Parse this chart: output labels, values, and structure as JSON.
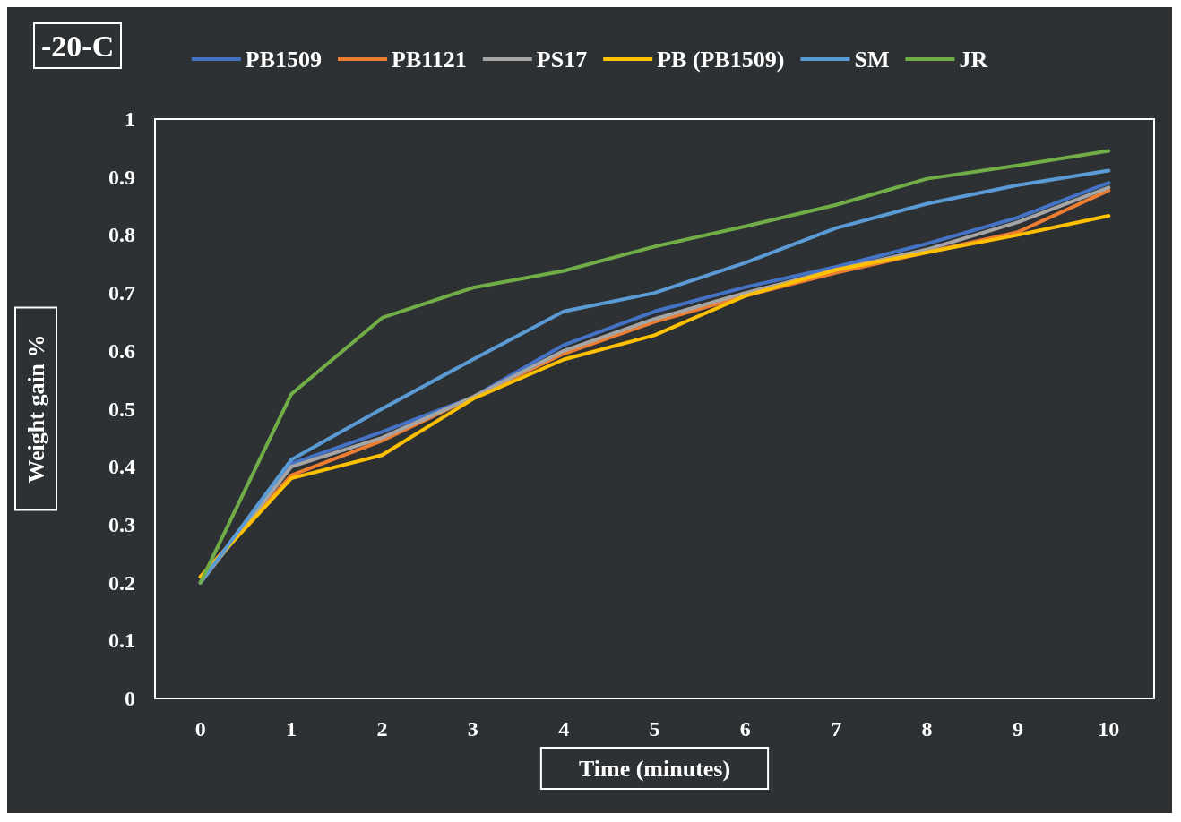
{
  "chart_data": {
    "type": "line",
    "title": "-20-C",
    "xlabel": "Time (minutes)",
    "ylabel": "Weight gain %",
    "categories": [
      "0",
      "1",
      "2",
      "3",
      "4",
      "5",
      "6",
      "7",
      "8",
      "9",
      "10"
    ],
    "series": [
      {
        "name": "PB1509",
        "color": "#4472c4",
        "values": [
          0.2,
          0.405,
          0.46,
          0.52,
          0.61,
          0.668,
          0.71,
          0.745,
          0.785,
          0.83,
          0.89
        ]
      },
      {
        "name": "PB1121",
        "color": "#ed7d31",
        "values": [
          0.21,
          0.385,
          0.445,
          0.52,
          0.595,
          0.65,
          0.695,
          0.735,
          0.77,
          0.805,
          0.877
        ]
      },
      {
        "name": "PS17",
        "color": "#a5a5a5",
        "values": [
          0.2,
          0.4,
          0.45,
          0.52,
          0.6,
          0.655,
          0.7,
          0.74,
          0.775,
          0.822,
          0.882
        ]
      },
      {
        "name": "PB (PB1509)",
        "color": "#ffc000",
        "values": [
          0.21,
          0.38,
          0.42,
          0.517,
          0.585,
          0.627,
          0.695,
          0.74,
          0.77,
          0.8,
          0.833
        ]
      },
      {
        "name": "SM",
        "color": "#5b9bd5",
        "values": [
          0.2,
          0.412,
          0.5,
          0.585,
          0.668,
          0.7,
          0.752,
          0.812,
          0.854,
          0.886,
          0.911
        ]
      },
      {
        "name": "JR",
        "color": "#70ad47",
        "values": [
          0.2,
          0.525,
          0.657,
          0.709,
          0.738,
          0.78,
          0.815,
          0.852,
          0.897,
          0.92,
          0.945
        ]
      }
    ],
    "ylim": [
      0,
      1
    ],
    "yticks": [
      0,
      0.1,
      0.2,
      0.3,
      0.4,
      0.5,
      0.6,
      0.7,
      0.8,
      0.9,
      1
    ],
    "grid": false,
    "legend": "top",
    "marker": "none",
    "line_style": "solid"
  }
}
